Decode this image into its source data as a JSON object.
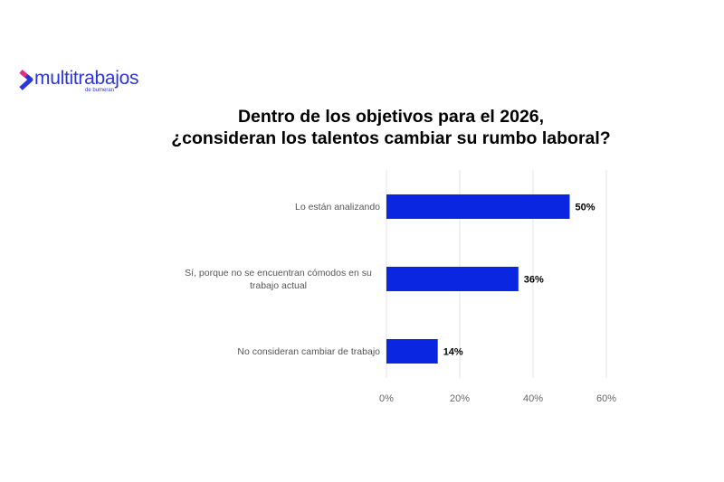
{
  "logo": {
    "name": "multitrabajos",
    "sub": "de bumeran",
    "colors": [
      "#2b35d8",
      "#e0307a"
    ]
  },
  "chart_data": {
    "type": "bar",
    "orientation": "horizontal",
    "title": "Dentro de los objetivos para el 2026, ¿consideran los talentos cambiar su rumbo laboral?",
    "title_lines": [
      "Dentro de los objetivos para el 2026,",
      "¿consideran los talentos cambiar su rumbo laboral?"
    ],
    "categories": [
      "Lo están analizando",
      "Sí, porque no se encuentran cómodos en su trabajo actual",
      "No consideran cambiar de trabajo"
    ],
    "values": [
      50,
      36,
      14
    ],
    "data_labels": [
      "50%",
      "36%",
      "14%"
    ],
    "xlim": [
      0,
      60
    ],
    "x_ticks": [
      0,
      20,
      40,
      60
    ],
    "x_tick_labels": [
      "0%",
      "20%",
      "40%",
      "60%"
    ],
    "grid": true,
    "legend": "none",
    "bar_color": "#0a26e0"
  }
}
